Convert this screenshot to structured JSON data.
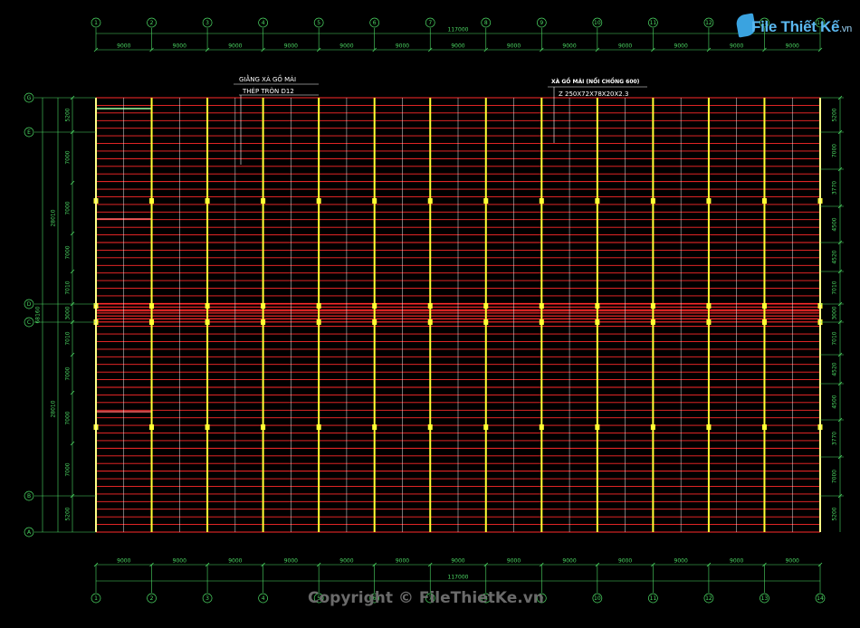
{
  "top_total": "117000",
  "bottom_total": "117000",
  "bay_label": "9000",
  "grid_numbers": [
    "1",
    "2",
    "3",
    "4",
    "5",
    "6",
    "7",
    "8",
    "9",
    "10",
    "11",
    "12",
    "13",
    "14"
  ],
  "grid_letters_left": [
    "G",
    "E",
    "D",
    "C",
    "B",
    "A"
  ],
  "left_outer_total": "68160",
  "left_half_total": "28010",
  "left_segments": [
    "5200",
    "7000",
    "7000",
    "7000",
    "7010",
    "3000",
    "7010",
    "7000",
    "7000",
    "7000",
    "5200"
  ],
  "right_segments": [
    "5200",
    "7000",
    "3770",
    "4500",
    "4520",
    "7010",
    "3000",
    "7010",
    "4520",
    "4500",
    "3770",
    "7000",
    "5200"
  ],
  "annotations": {
    "bracing_title": "GIẰNG XÀ GỒ MÁI",
    "bracing_spec": "THÉP TRÒN D12",
    "purlin_title": "XÀ GỒ MÁI (NỐI CHỒNG 600)",
    "purlin_spec": "Z 250X72X78X20X2.3"
  },
  "copyright": "Copyright © FileThietKe.vn",
  "logo": {
    "main": "File Thiết Kế",
    "suffix": ".vn"
  },
  "colors": {
    "background": "#000000",
    "purlin": "#FF2A2A",
    "rafter": "#FFFF33",
    "dimension": "#4CD964",
    "bracing": "#FFFFFF"
  }
}
